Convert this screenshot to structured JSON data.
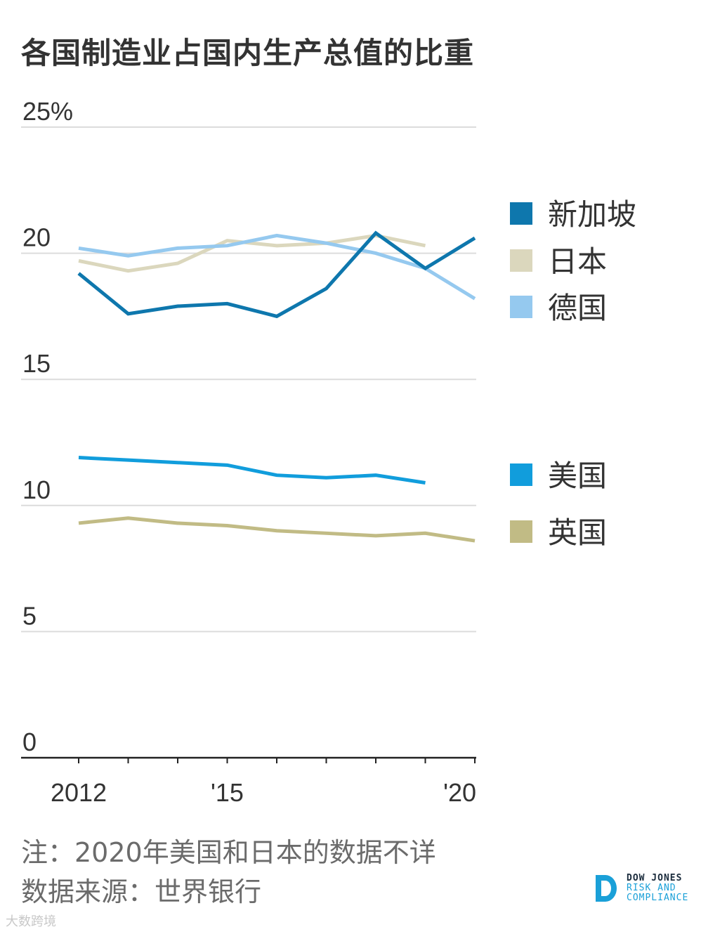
{
  "title": "各国制造业占国内生产总值的比重",
  "chart_data": {
    "type": "line",
    "title": "各国制造业占国内生产总值的比重",
    "x": [
      2012,
      2013,
      2014,
      2015,
      2016,
      2017,
      2018,
      2019,
      2020
    ],
    "xlim": [
      2012,
      2020
    ],
    "ylim": [
      0,
      25
    ],
    "y_ticks": [
      0,
      5,
      10,
      15,
      20,
      25
    ],
    "y_tick_labels": [
      "0",
      "5",
      "10",
      "15",
      "20",
      "25%"
    ],
    "x_ticks": [
      2012,
      2013,
      2014,
      2015,
      2016,
      2017,
      2018,
      2019,
      2020
    ],
    "x_tick_labels": [
      {
        "x": 2012,
        "label": "2012"
      },
      {
        "x": 2015,
        "label": "'15"
      },
      {
        "x": 2020,
        "label": "'20"
      }
    ],
    "grid": true,
    "series": [
      {
        "name": "新加坡",
        "color": "#0e77ad",
        "values": [
          19.2,
          17.6,
          17.9,
          18.0,
          17.5,
          18.6,
          20.8,
          19.4,
          20.6
        ]
      },
      {
        "name": "日本",
        "color": "#dbd7bd",
        "values": [
          19.7,
          19.3,
          19.6,
          20.5,
          20.3,
          20.4,
          20.7,
          20.3,
          null
        ]
      },
      {
        "name": "德国",
        "color": "#95c9ef",
        "values": [
          20.2,
          19.9,
          20.2,
          20.3,
          20.7,
          20.4,
          20.0,
          19.4,
          18.2
        ]
      },
      {
        "name": "美国",
        "color": "#119ddc",
        "values": [
          11.9,
          11.8,
          11.7,
          11.6,
          11.2,
          11.1,
          11.2,
          10.9,
          null
        ]
      },
      {
        "name": "英国",
        "color": "#c1bb85",
        "values": [
          9.3,
          9.5,
          9.3,
          9.2,
          9.0,
          8.9,
          8.8,
          8.9,
          8.6
        ]
      }
    ],
    "legend_groups": [
      [
        "新加坡",
        "日本",
        "德国"
      ],
      [
        "美国",
        "英国"
      ]
    ]
  },
  "notes": {
    "note": "注：2020年美国和日本的数据不详",
    "source": "数据来源：世界银行"
  },
  "brand": {
    "line1": "DOW JONES",
    "line2": "RISK AND",
    "line3": "COMPLIANCE",
    "mark_color": "#1aa0d8"
  },
  "watermark": "大数跨境"
}
